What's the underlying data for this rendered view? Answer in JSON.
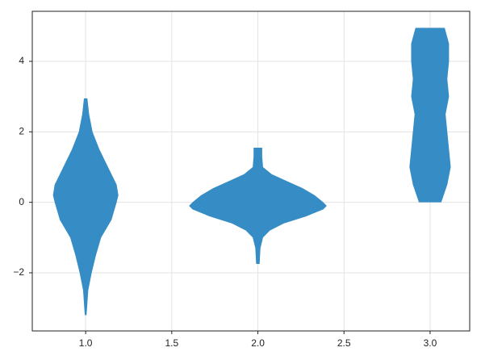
{
  "chart_data": {
    "type": "violin",
    "x": [
      1,
      2,
      3
    ],
    "color": "#2b86c1",
    "grid": true,
    "xlim": [
      0.69,
      3.23
    ],
    "ylim": [
      -3.65,
      5.42
    ],
    "xticks": [
      {
        "value": 1,
        "label": "1.0"
      },
      {
        "value": 1.5,
        "label": "1.5"
      },
      {
        "value": 2,
        "label": "2.0"
      },
      {
        "value": 2.5,
        "label": "2.5"
      },
      {
        "value": 3,
        "label": "3.0"
      }
    ],
    "yticks": [
      {
        "value": -2,
        "label": "−2"
      },
      0,
      2,
      4
    ],
    "violins": [
      {
        "y": [
          2.95,
          2.5,
          2.0,
          1.5,
          1.0,
          0.5,
          0.2,
          0.0,
          -0.5,
          -1.0,
          -1.5,
          -2.0,
          -2.5,
          -3.0,
          -3.2
        ],
        "width": [
          0.01,
          0.02,
          0.04,
          0.08,
          0.13,
          0.18,
          0.19,
          0.18,
          0.15,
          0.09,
          0.06,
          0.035,
          0.015,
          0.008,
          0.005
        ]
      },
      {
        "y": [
          1.55,
          1.3,
          1.0,
          0.8,
          0.6,
          0.4,
          0.2,
          0.0,
          -0.1,
          -0.2,
          -0.4,
          -0.6,
          -0.8,
          -1.0,
          -1.3,
          -1.75
        ],
        "width": [
          0.025,
          0.025,
          0.03,
          0.08,
          0.17,
          0.26,
          0.33,
          0.38,
          0.4,
          0.38,
          0.28,
          0.15,
          0.07,
          0.03,
          0.015,
          0.01
        ]
      },
      {
        "y": [
          4.95,
          4.5,
          4.0,
          3.5,
          3.0,
          2.5,
          2.0,
          1.5,
          1.0,
          0.5,
          0.0
        ],
        "width": [
          0.085,
          0.11,
          0.11,
          0.1,
          0.11,
          0.09,
          0.1,
          0.11,
          0.12,
          0.1,
          0.065
        ]
      }
    ]
  }
}
